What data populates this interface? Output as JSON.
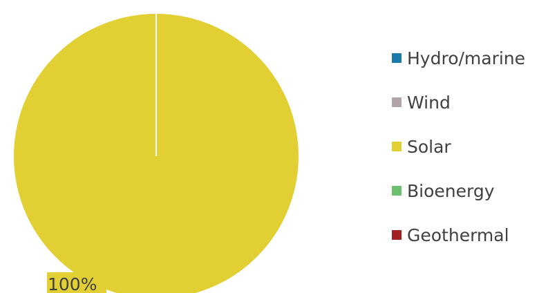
{
  "chart_data": {
    "type": "pie",
    "title": "",
    "categories": [
      "Hydro/marine",
      "Wind",
      "Solar",
      "Bioenergy",
      "Geothermal"
    ],
    "values": [
      0,
      0,
      100,
      0,
      0
    ],
    "colors": [
      "#1a7bab",
      "#b0a3aa",
      "#e2cf33",
      "#6dbf6d",
      "#a11f24"
    ],
    "data_labels": [
      "",
      "",
      "100%",
      "",
      ""
    ],
    "legend_position": "right"
  }
}
